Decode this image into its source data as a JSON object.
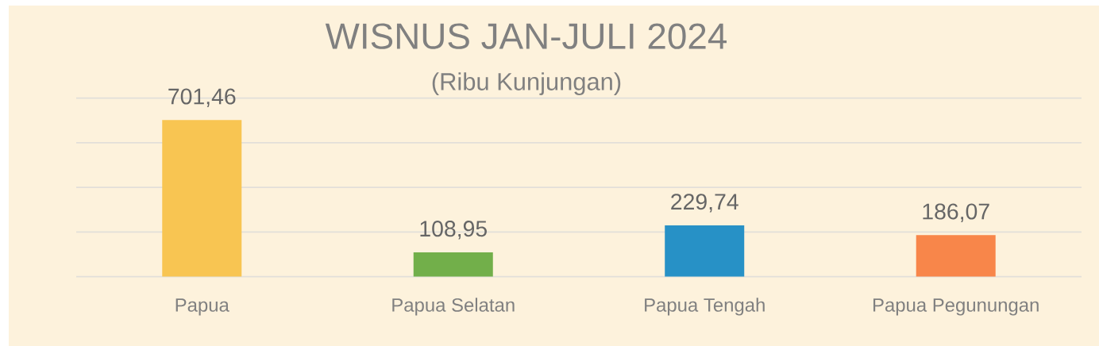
{
  "chart_data": {
    "type": "bar",
    "title": "WISNUS JAN-JULI 2024",
    "subtitle": "(Ribu Kunjungan)",
    "categories": [
      "Papua",
      "Papua Selatan",
      "Papua Tengah",
      "Papua Pegunungan"
    ],
    "values": [
      701.46,
      108.95,
      229.74,
      186.07
    ],
    "colors": [
      "#f8c552",
      "#72af4a",
      "#2791c6",
      "#f8864a"
    ],
    "value_labels": [
      "701,46",
      "108,95",
      "229,74",
      "186,07"
    ],
    "ylim": [
      0,
      800
    ],
    "yticks": [
      {
        "value": 0,
        "label": null
      },
      {
        "value": 200,
        "label": null
      },
      {
        "value": 400,
        "label": null
      },
      {
        "value": 600,
        "label": null
      },
      {
        "value": 800,
        "label": null
      }
    ],
    "grid": "y",
    "tick_labels": "x"
  }
}
